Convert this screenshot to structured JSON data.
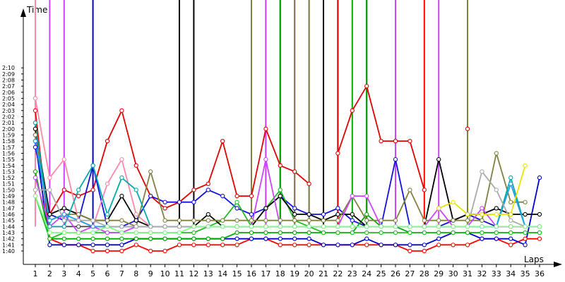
{
  "chart_data": {
    "type": "line",
    "xlabel": "Laps",
    "ylabel": "Time",
    "x_ticks": [
      "1",
      "2",
      "3",
      "4",
      "5",
      "6",
      "7",
      "8",
      "9",
      "10",
      "11",
      "12",
      "13",
      "14",
      "15",
      "16",
      "17",
      "18",
      "19",
      "20",
      "21",
      "22",
      "23",
      "24",
      "25",
      "26",
      "27",
      "28",
      "29",
      "30",
      "31",
      "32",
      "33",
      "34",
      "35",
      "36"
    ],
    "y_ticks": [
      "1:40",
      "1:41",
      "1:42",
      "1:43",
      "1:44",
      "1:45",
      "1:46",
      "1:47",
      "1:48",
      "1:49",
      "1:50",
      "1:51",
      "1:52",
      "1:53",
      "1:54",
      "1:55",
      "1:56",
      "1:57",
      "1:58",
      "1:59",
      "2:00",
      "2:01",
      "2:02",
      "2:03",
      "2:04",
      "2:05",
      "2:06",
      "2:07",
      "2:08",
      "2:09",
      "2:10"
    ],
    "xlim": [
      1,
      36
    ],
    "ylim_seconds": [
      100,
      130
    ],
    "grid": false,
    "series": [
      {
        "color": "#ff0000",
        "values": [
          123,
          102,
          101,
          101,
          100,
          100,
          100,
          101,
          100,
          100,
          101,
          101,
          101,
          101,
          101,
          102,
          102,
          101,
          101,
          101,
          101,
          101,
          101,
          101,
          101,
          101,
          100,
          100,
          101,
          101,
          101,
          102,
          102,
          101,
          102,
          102
        ]
      },
      {
        "color": "#e00000",
        "values": [
          null,
          106,
          110,
          109,
          110,
          118,
          123,
          114,
          109,
          107,
          108,
          110,
          111,
          118,
          109,
          109,
          120,
          114,
          113,
          111,
          null,
          116,
          123,
          127,
          118,
          118,
          118,
          110,
          null,
          null,
          120,
          null,
          null,
          null,
          null,
          null
        ]
      },
      {
        "color": "#0000cc",
        "values": [
          118,
          101,
          101,
          101,
          101,
          101,
          101,
          102,
          102,
          102,
          102,
          102,
          102,
          102,
          102,
          102,
          102,
          102,
          102,
          102,
          101,
          101,
          101,
          102,
          101,
          101,
          101,
          101,
          102,
          103,
          103,
          102,
          102,
          102,
          101,
          112
        ]
      },
      {
        "color": "#1010dd",
        "values": [
          117,
          106,
          105,
          105,
          114,
          104,
          104,
          105,
          109,
          108,
          108,
          108,
          110,
          109,
          107,
          106,
          107,
          109,
          107,
          106,
          106,
          107,
          105,
          104,
          104,
          115,
          104,
          104,
          104,
          105,
          106,
          105,
          104,
          104,
          104,
          null
        ]
      },
      {
        "color": "#00aa00",
        "values": [
          113,
          102,
          102,
          102,
          102,
          102,
          102,
          102,
          102,
          102,
          102,
          102,
          102,
          102,
          103,
          103,
          103,
          103,
          103,
          103,
          103,
          103,
          103,
          106,
          104,
          104,
          103,
          103,
          103,
          103,
          103,
          103,
          103,
          103,
          103,
          103
        ]
      },
      {
        "color": "#22bb22",
        "values": [
          109,
          102,
          103,
          103,
          103,
          103,
          103,
          103,
          103,
          103,
          103,
          103,
          104,
          105,
          108,
          104,
          107,
          110,
          105,
          104,
          103,
          103,
          103,
          103,
          103,
          103,
          103,
          103,
          103,
          103,
          103,
          103,
          103,
          103,
          103,
          103
        ]
      },
      {
        "color": "#000000",
        "values": [
          120,
          106,
          107,
          106,
          105,
          105,
          109,
          105,
          104,
          104,
          104,
          104,
          106,
          104,
          104,
          104,
          107,
          109,
          106,
          106,
          105,
          106,
          106,
          104,
          104,
          104,
          104,
          104,
          115,
          105,
          106,
          106,
          107,
          106,
          106,
          106
        ]
      },
      {
        "color": "#404040",
        "values": [
          119,
          104,
          104,
          104,
          104,
          104,
          104,
          104,
          104,
          104,
          104,
          104,
          104,
          104,
          104,
          104,
          104,
          104,
          104,
          104,
          104,
          104,
          104,
          104,
          104,
          104,
          104,
          104,
          104,
          104,
          104,
          104,
          104,
          104,
          104,
          104
        ]
      },
      {
        "color": "#ff88aa",
        "values": [
          125,
          112,
          115,
          105,
          104,
          111,
          115,
          106,
          104,
          104,
          104,
          104,
          104,
          104,
          104,
          104,
          104,
          104,
          104,
          104,
          104,
          104,
          104,
          104,
          104,
          104,
          104,
          104,
          104,
          104,
          104,
          104,
          104,
          104,
          104,
          104
        ]
      },
      {
        "color": "#808040",
        "values": [
          119,
          105,
          106,
          106,
          105,
          105,
          105,
          104,
          113,
          105,
          105,
          105,
          105,
          105,
          105,
          105,
          105,
          105,
          105,
          105,
          105,
          105,
          109,
          105,
          105,
          105,
          110,
          105,
          105,
          105,
          105,
          105,
          116,
          108,
          108,
          null
        ]
      },
      {
        "color": "#cc44ff",
        "values": [
          112,
          104,
          106,
          103,
          104,
          103,
          103,
          104,
          104,
          104,
          104,
          104,
          104,
          104,
          104,
          104,
          115,
          104,
          104,
          104,
          104,
          104,
          109,
          109,
          104,
          104,
          104,
          104,
          107,
          104,
          104,
          107,
          104,
          104,
          104,
          104
        ]
      },
      {
        "color": "#00aaaa",
        "values": [
          121,
          104,
          104,
          110,
          114,
          106,
          112,
          110,
          104,
          104,
          104,
          104,
          104,
          104,
          104,
          104,
          104,
          104,
          104,
          104,
          104,
          104,
          104,
          104,
          104,
          104,
          104,
          104,
          104,
          104,
          104,
          104,
          104,
          112,
          104,
          104
        ]
      },
      {
        "color": "#20a0e0",
        "values": [
          118,
          105,
          106,
          105,
          104,
          104,
          104,
          104,
          104,
          104,
          104,
          104,
          104,
          104,
          104,
          104,
          104,
          104,
          104,
          104,
          104,
          104,
          104,
          104,
          104,
          104,
          104,
          104,
          104,
          104,
          104,
          104,
          104,
          111,
          104,
          104
        ]
      },
      {
        "color": "#aaaaaa",
        "values": [
          110,
          110,
          105,
          105,
          105,
          104,
          104,
          104,
          104,
          104,
          104,
          104,
          104,
          104,
          104,
          104,
          104,
          104,
          104,
          104,
          104,
          104,
          104,
          104,
          104,
          104,
          104,
          104,
          104,
          104,
          104,
          113,
          110,
          105,
          104,
          104
        ]
      },
      {
        "color": "#e6e600",
        "values": [
          null,
          null,
          null,
          null,
          null,
          null,
          null,
          null,
          null,
          null,
          null,
          null,
          null,
          null,
          null,
          null,
          null,
          null,
          null,
          null,
          null,
          null,
          null,
          null,
          null,
          null,
          null,
          null,
          107,
          108,
          106,
          106,
          106,
          106,
          114,
          null
        ]
      },
      {
        "color": "#80ff80",
        "values": [
          109,
          103,
          103,
          103,
          103,
          104,
          103,
          103,
          103,
          103,
          103,
          104,
          104,
          104,
          104,
          104,
          104,
          104,
          104,
          104,
          104,
          104,
          104,
          104,
          104,
          104,
          104,
          104,
          104,
          104,
          104,
          104,
          104,
          104,
          104,
          104
        ]
      }
    ],
    "spikes": [
      {
        "color": "#ff88aa",
        "x": 1
      },
      {
        "color": "#cc44ff",
        "x": 2
      },
      {
        "color": "#cc44ff",
        "x": 3
      },
      {
        "color": "#0000cc",
        "x": 5
      },
      {
        "color": "#000000",
        "x": 11
      },
      {
        "color": "#000000",
        "x": 12
      },
      {
        "color": "#808040",
        "x": 16
      },
      {
        "color": "#808040",
        "x": 17
      },
      {
        "color": "#cc44ff",
        "x": 17
      },
      {
        "color": "#e6e600",
        "x": 18
      },
      {
        "color": "#0000cc",
        "x": 18
      },
      {
        "color": "#808040",
        "x": 18
      },
      {
        "color": "#00aa00",
        "x": 18
      },
      {
        "color": "#cc44ff",
        "x": 19
      },
      {
        "color": "#808040",
        "x": 19
      },
      {
        "color": "#00aaaa",
        "x": 20
      },
      {
        "color": "#cc44ff",
        "x": 20
      },
      {
        "color": "#808040",
        "x": 20
      },
      {
        "color": "#000000",
        "x": 21
      },
      {
        "color": "#0000cc",
        "x": 22
      },
      {
        "color": "#e00000",
        "x": 22
      },
      {
        "color": "#00aa00",
        "x": 23
      },
      {
        "color": "#000000",
        "x": 24
      },
      {
        "color": "#00aa00",
        "x": 24
      },
      {
        "color": "#cc44ff",
        "x": 26
      },
      {
        "color": "#ff0000",
        "x": 28
      },
      {
        "color": "#cc44ff",
        "x": 29
      },
      {
        "color": "#808040",
        "x": 31
      }
    ]
  }
}
